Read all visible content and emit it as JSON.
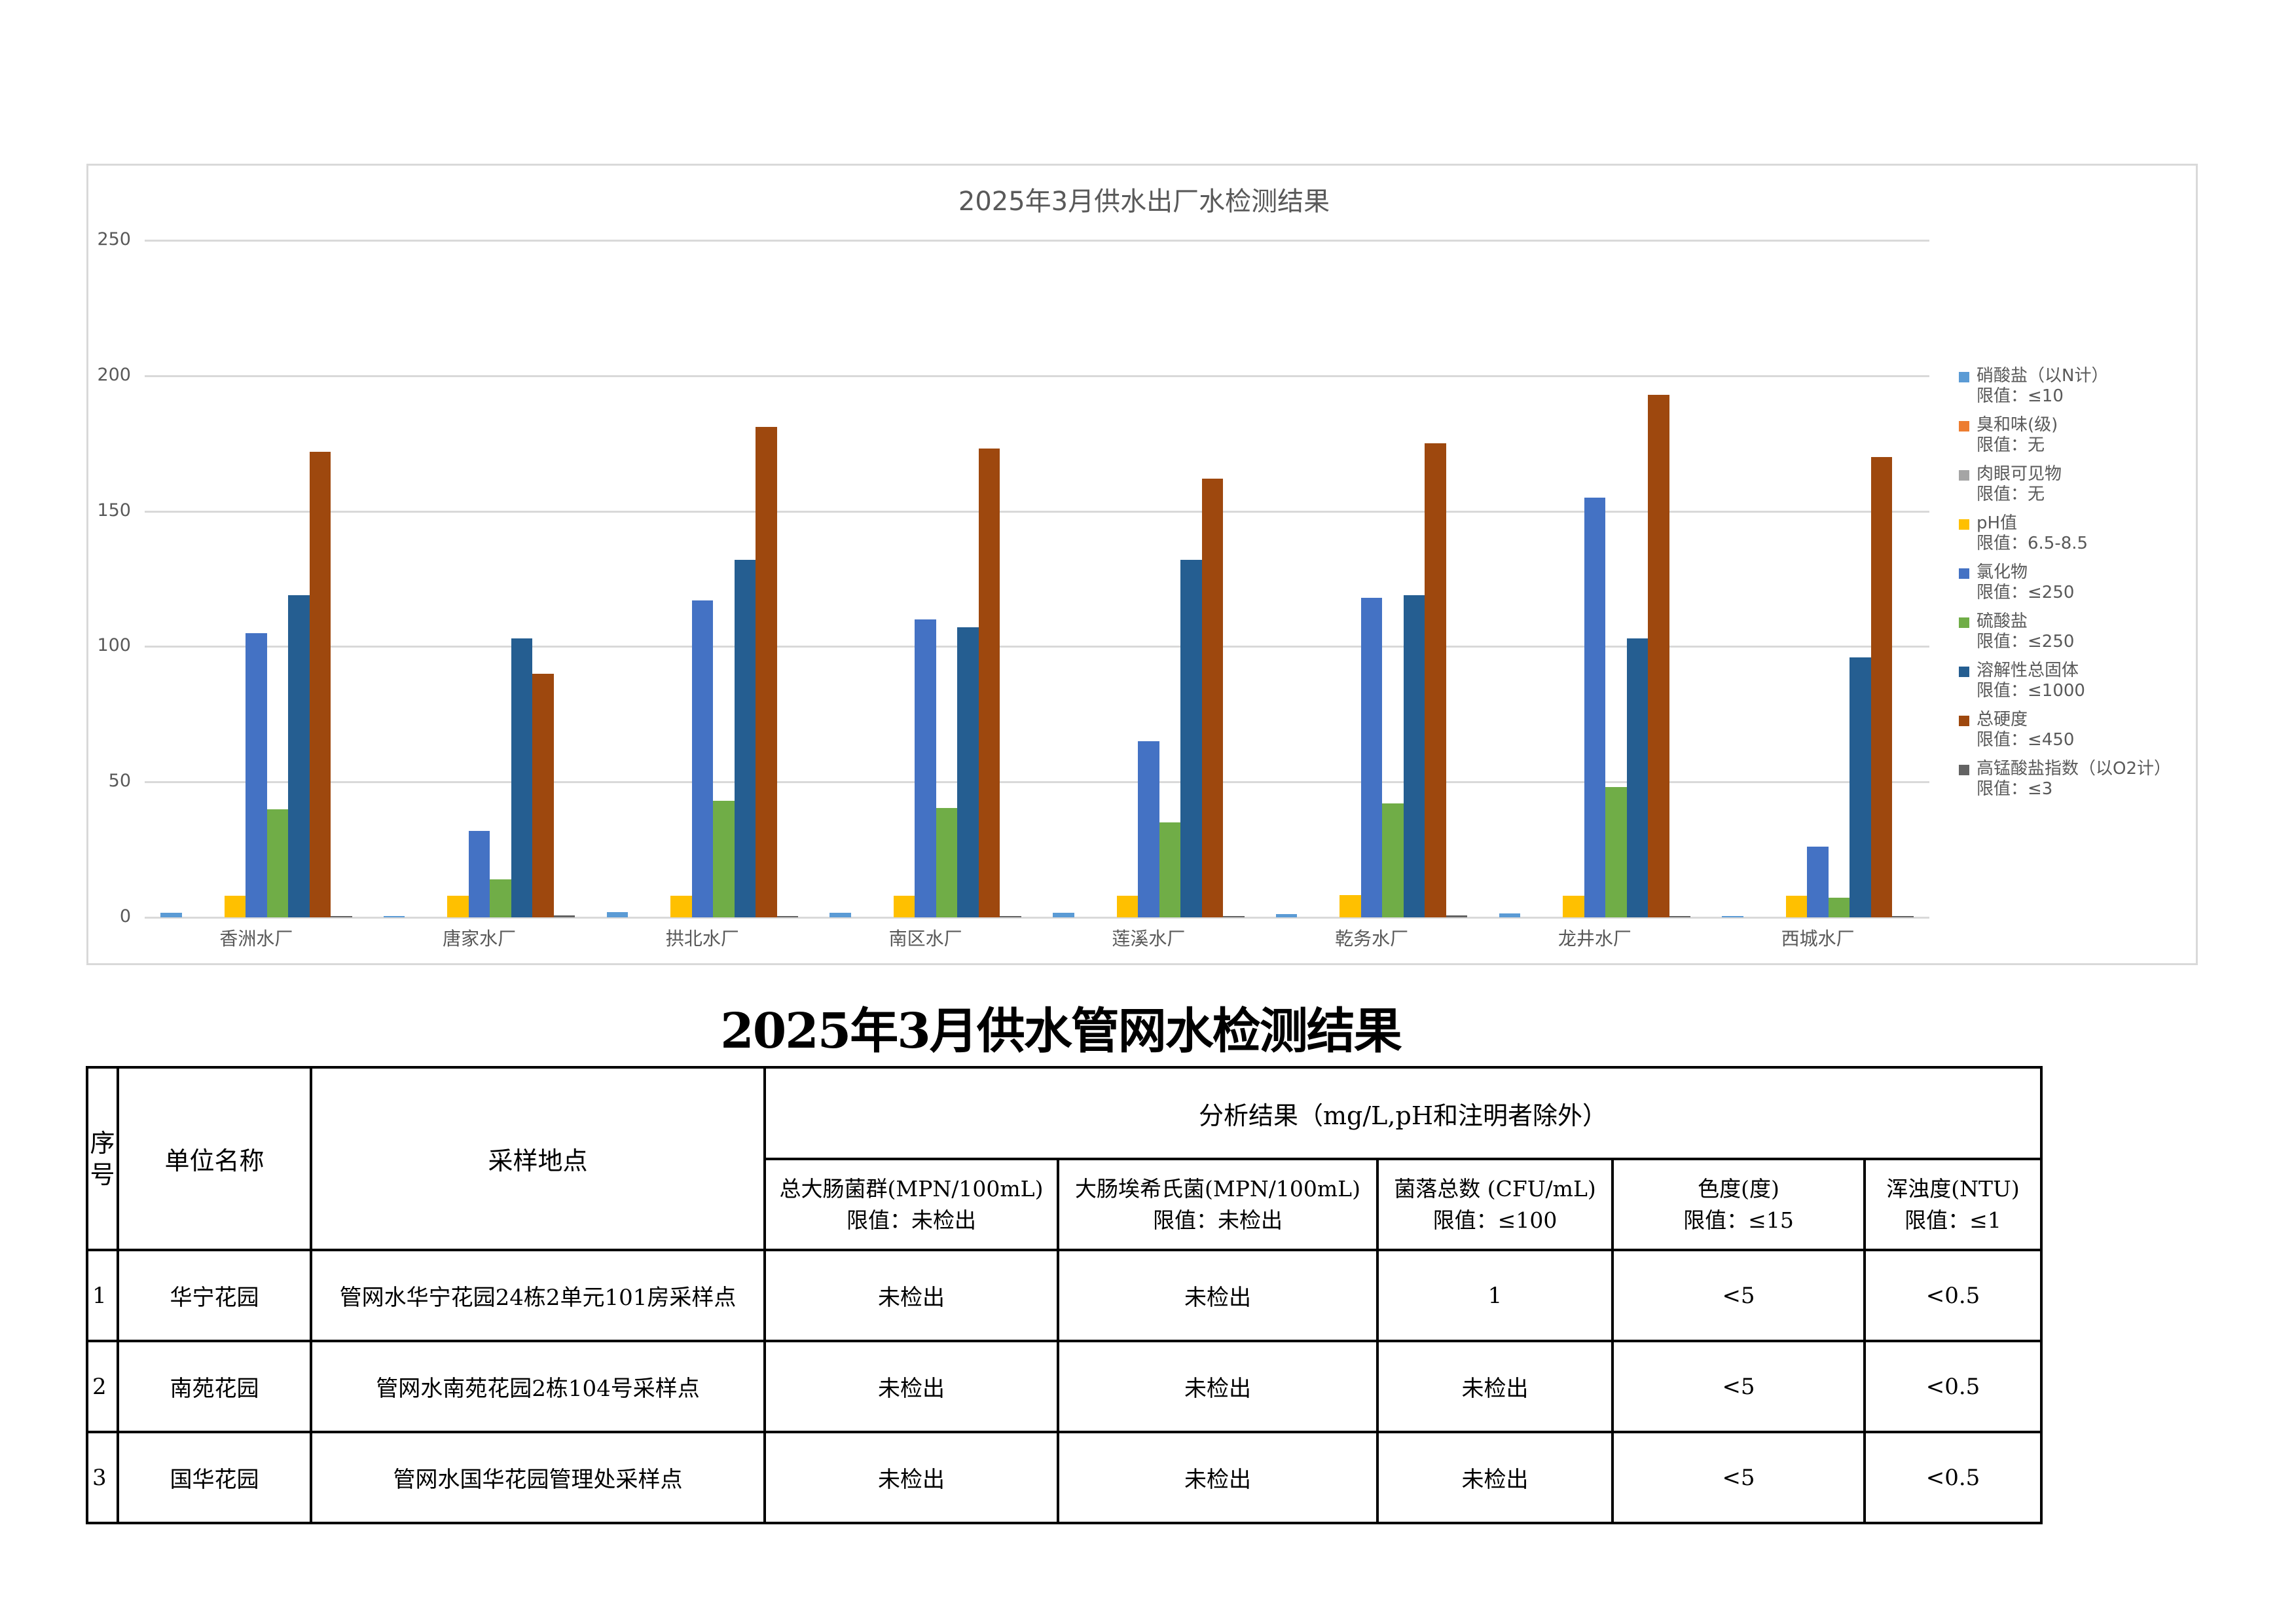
{
  "chart_data": {
    "type": "bar",
    "title": "2025年3月供水出厂水检测结果",
    "xlabel": "",
    "ylabel": "",
    "ylim": [
      0,
      250
    ],
    "yticks": [
      "0",
      "50",
      "100",
      "150",
      "200",
      "250"
    ],
    "grid": true,
    "legend_position": "right",
    "categories": [
      "香洲水厂",
      "唐家水厂",
      "拱北水厂",
      "南区水厂",
      "莲溪水厂",
      "乾务水厂",
      "龙井水厂",
      "西城水厂"
    ],
    "series": [
      {
        "name": "硝酸盐（以N计）",
        "limit": "限值：≤10",
        "color": "#5b9bd5",
        "values": [
          1.7,
          0.3,
          2.0,
          1.8,
          1.8,
          1.2,
          1.5,
          0.3
        ]
      },
      {
        "name": "臭和味(级)",
        "limit": "限值：无",
        "color": "#ed7d31",
        "values": [
          0,
          0,
          0,
          0,
          0,
          0,
          0,
          0
        ]
      },
      {
        "name": "肉眼可见物",
        "limit": "限值：无",
        "color": "#a5a5a5",
        "values": [
          0,
          0,
          0,
          0,
          0,
          0,
          0,
          0
        ]
      },
      {
        "name": "pH值",
        "limit": "限值：6.5-8.5",
        "color": "#ffc000",
        "values": [
          8.0,
          8.0,
          7.9,
          8.0,
          7.9,
          8.3,
          8.0,
          8.0
        ]
      },
      {
        "name": "氯化物",
        "limit": "限值：≤250",
        "color": "#4472c4",
        "values": [
          105,
          32,
          117,
          110,
          65,
          118,
          155,
          26
        ]
      },
      {
        "name": "硫酸盐",
        "limit": "限值：≤250",
        "color": "#70ad47",
        "values": [
          40,
          14,
          43,
          40.5,
          35,
          42,
          48,
          7.3
        ]
      },
      {
        "name": "溶解性总固体",
        "limit": "限值：≤1000",
        "color": "#255e91",
        "values": [
          119,
          103,
          132,
          107,
          132,
          119,
          103,
          96
        ]
      },
      {
        "name": "总硬度",
        "limit": "限值：≤450",
        "color": "#9e480e",
        "values": [
          172,
          90,
          181,
          173,
          162,
          175,
          193,
          170
        ]
      },
      {
        "name": "高锰酸盐指数（以O2计）",
        "limit": "限值：≤3",
        "color": "#636363",
        "values": [
          0.6,
          0.7,
          0.6,
          0.6,
          0.5,
          0.7,
          0.6,
          0.6
        ]
      }
    ]
  },
  "table": {
    "title": "2025年3月供水管网水检测结果",
    "headers": {
      "seq": "序号",
      "unit": "单位名称",
      "site": "采样地点",
      "analysis": "分析结果（mg/L,pH和注明者除外）",
      "columns": [
        {
          "name": "总大肠菌群(MPN/100mL)",
          "limit": "限值：未检出"
        },
        {
          "name": "大肠埃希氏菌(MPN/100mL)",
          "limit": "限值：未检出"
        },
        {
          "name": "菌落总数 (CFU/mL)",
          "limit": "限值：≤100"
        },
        {
          "name": "色度(度)",
          "limit": "限值：≤15"
        },
        {
          "name": "浑浊度(NTU)",
          "limit": "限值：≤1"
        }
      ]
    },
    "rows": [
      {
        "seq": "1",
        "unit": "华宁花园",
        "site": "管网水华宁花园24栋2单元101房采样点",
        "values": [
          "未检出",
          "未检出",
          "1",
          "<5",
          "<0.5"
        ]
      },
      {
        "seq": "2",
        "unit": "南苑花园",
        "site": "管网水南苑花园2栋104号采样点",
        "values": [
          "未检出",
          "未检出",
          "未检出",
          "<5",
          "<0.5"
        ]
      },
      {
        "seq": "3",
        "unit": "国华花园",
        "site": "管网水国华花园管理处采样点",
        "values": [
          "未检出",
          "未检出",
          "未检出",
          "<5",
          "<0.5"
        ]
      }
    ]
  }
}
